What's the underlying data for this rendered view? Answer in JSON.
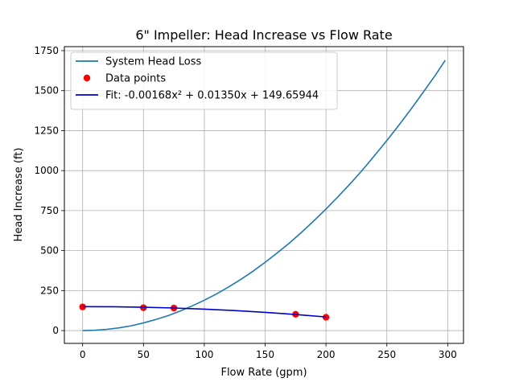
{
  "chart_data": {
    "type": "line",
    "title": "6\" Impeller: Head Increase vs Flow Rate",
    "xlabel": "Flow Rate (gpm)",
    "ylabel": "Head Increase (ft)",
    "xlim": [
      -15,
      313
    ],
    "ylim": [
      -80,
      1775
    ],
    "xticks": [
      0,
      50,
      100,
      150,
      200,
      250,
      300
    ],
    "yticks": [
      0,
      250,
      500,
      750,
      1000,
      1250,
      1500,
      1750
    ],
    "grid": true,
    "legend_position": "top-left",
    "series": [
      {
        "name": "System Head Loss",
        "kind": "line",
        "color": "#1f77b4",
        "x": [
          0,
          10,
          20,
          30,
          40,
          50,
          60,
          70,
          80,
          90,
          100,
          110,
          120,
          130,
          140,
          150,
          160,
          170,
          180,
          190,
          200,
          210,
          220,
          230,
          240,
          250,
          260,
          270,
          280,
          290,
          298
        ],
        "y": [
          0,
          2,
          8,
          17,
          30,
          48,
          69,
          93,
          122,
          154,
          190,
          229,
          273,
          320,
          371,
          427,
          486,
          548,
          615,
          686,
          760,
          838,
          919,
          1004,
          1095,
          1188,
          1285,
          1386,
          1491,
          1598,
          1690
        ]
      },
      {
        "name": "Data points",
        "kind": "scatter",
        "color": "#ff0000",
        "x": [
          0,
          50,
          75,
          175,
          200
        ],
        "y": [
          148,
          143,
          141,
          102,
          83
        ]
      },
      {
        "name": "Fit: -0.00168x² + 0.01350x + 149.65944",
        "kind": "line",
        "color": "#0000cd",
        "coefficients": [
          -0.00168,
          0.0135,
          149.65944
        ],
        "x": [
          0,
          25,
          50,
          75,
          100,
          125,
          150,
          175,
          200
        ],
        "y": [
          149.7,
          148.9,
          146.1,
          141.2,
          134.2,
          125.1,
          113.9,
          100.6,
          85.2
        ]
      }
    ]
  }
}
